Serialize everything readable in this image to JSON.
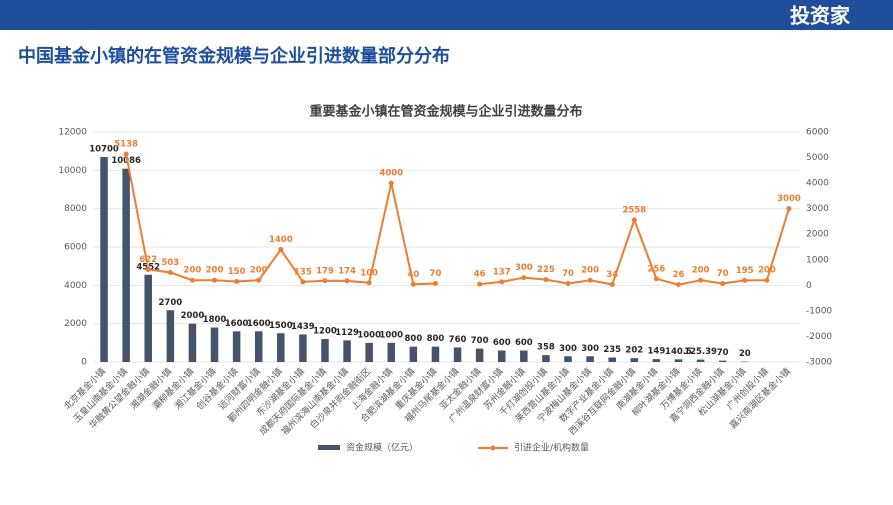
{
  "header": {
    "logo": "投资家",
    "title": "中国基金小镇的在管资金规模与企业引进数量部分分布"
  },
  "chart_data": {
    "type": "bar-line",
    "title": "重要基金小镇在管资金规模与企业引进数量分布",
    "categories": [
      "北京基金小镇",
      "玉皇山南基金小镇",
      "华融黄公望金融小镇",
      "湘湖金融小镇",
      "灞柳基金小镇",
      "湘江基金小镇",
      "创谷基金小镇",
      "运河财富小镇",
      "鄞州四明金融小镇",
      "东沙湖基金小镇",
      "成都天府国际基金小镇",
      "福州滨海山南基金小镇",
      "白沙泉并购金融街区",
      "上海金融小镇",
      "合肥滨湖基金小镇",
      "重庆基金小镇",
      "福州马尾基金小镇",
      "亚太金融小镇",
      "广州温泉财富小镇",
      "苏州金融小镇",
      "千灯湖创投小镇",
      "莱西营山基金小镇",
      "宁波梅山基金小镇",
      "数字产业基金小镇",
      "西溪谷互联网金融小镇",
      "南湖基金小镇",
      "柳叶湖基金小镇",
      "万博基金小镇",
      "嘉宁洞西金融小镇",
      "松山湖基金小镇",
      "广州创投小镇",
      "嘉兴南湖区基金小镇"
    ],
    "series": [
      {
        "name": "资金规模（亿元）",
        "color": "#44546a",
        "axis": "y",
        "values": [
          10700,
          10086,
          4552,
          2700,
          2000,
          1800,
          1600,
          1600,
          1500,
          1439,
          1200,
          1129,
          1000,
          1000,
          800,
          800,
          760,
          700,
          600,
          600,
          358,
          300,
          300,
          235,
          202,
          149,
          140.5,
          125.39,
          70,
          20,
          null,
          null
        ]
      },
      {
        "name": "引进企业/机构数量",
        "color": "#ed7d31",
        "axis": "y2",
        "values": [
          null,
          5138,
          622,
          503,
          200,
          200,
          150,
          200,
          1400,
          135,
          179,
          174,
          100,
          4000,
          40,
          70,
          null,
          46,
          137,
          300,
          225,
          70,
          200,
          34,
          2558,
          256,
          26,
          200,
          70,
          195,
          200,
          3000
        ]
      }
    ],
    "ylim": [
      0,
      12000
    ],
    "yticks": [
      0,
      2000,
      4000,
      6000,
      8000,
      10000,
      12000
    ],
    "y2lim": [
      -3000,
      6000
    ],
    "y2ticks": [
      -3000,
      -2000,
      -1000,
      0,
      1000,
      2000,
      3000,
      4000,
      5000,
      6000
    ]
  }
}
